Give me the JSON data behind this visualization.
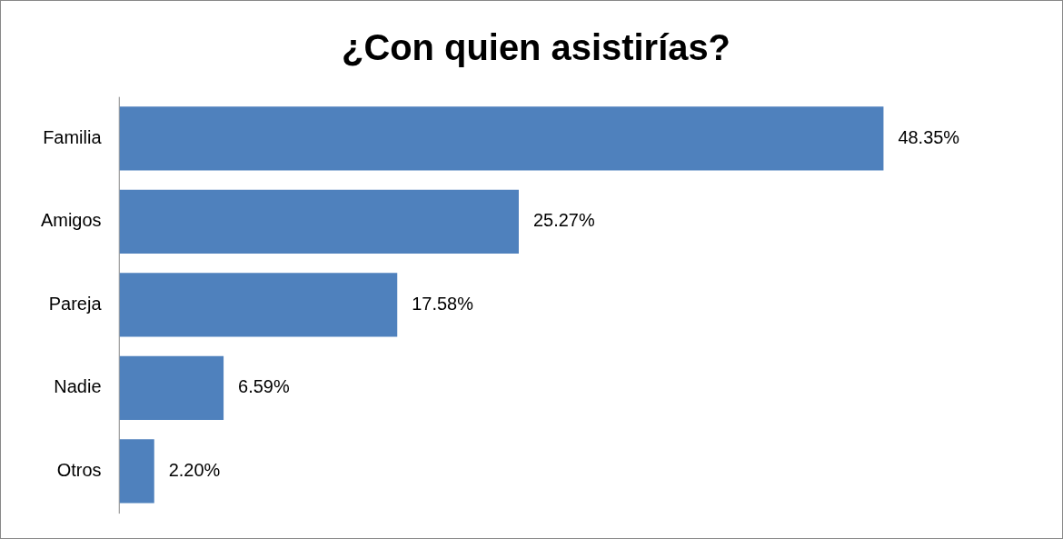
{
  "chart_data": {
    "type": "bar",
    "orientation": "horizontal",
    "title": "¿Con quien asistirías?",
    "categories": [
      "Familia",
      "Amigos",
      "Pareja",
      "Nadie",
      "Otros"
    ],
    "values": [
      48.35,
      25.27,
      17.58,
      6.59,
      2.2
    ],
    "value_labels": [
      "48.35%",
      "25.27%",
      "17.58%",
      "6.59%",
      "2.20%"
    ],
    "color": "#4f81bd"
  }
}
